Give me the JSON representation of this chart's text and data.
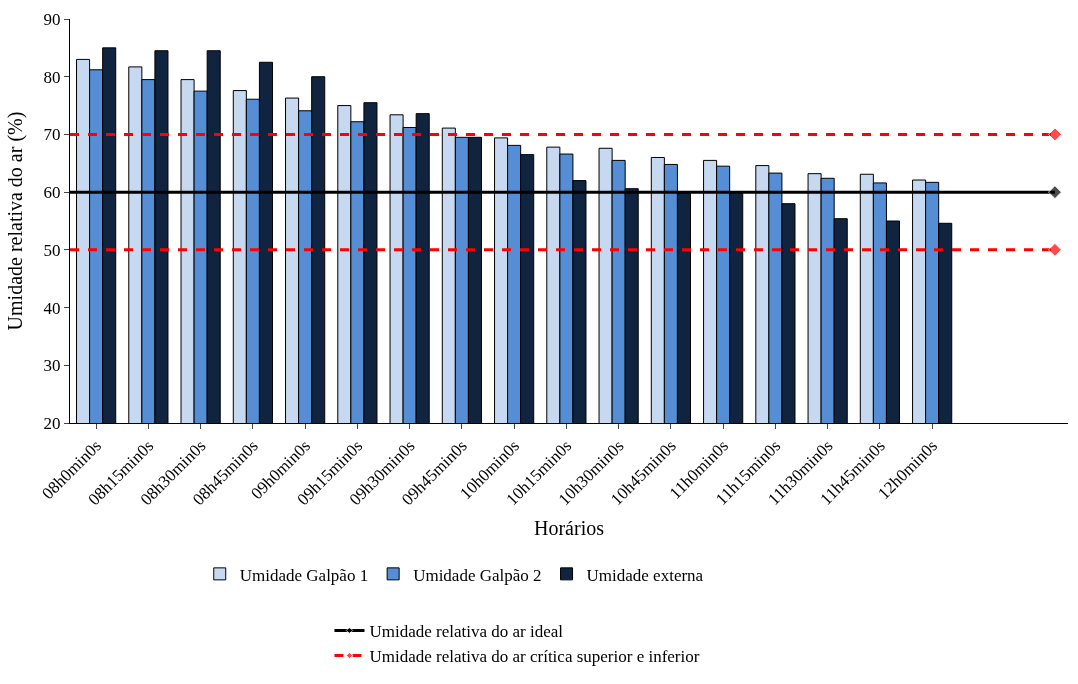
{
  "chart_data": {
    "type": "bar",
    "xlabel": "Horários",
    "ylabel": "Umidade relativa do ar (%)",
    "categories": [
      "08h0min0s",
      "08h15min0s",
      "08h30min0s",
      "08h45min0s",
      "09h0min0s",
      "09h15min0s",
      "09h30min0s",
      "09h45min0s",
      "10h0min0s",
      "10h15min0s",
      "10h30min0s",
      "10h45min0s",
      "11h0min0s",
      "11h15min0s",
      "11h30min0s",
      "11h45min0s",
      "12h0min0s"
    ],
    "series": [
      {
        "name": "Umidade Galpão 1",
        "color": "#c6d9f1",
        "values": [
          83,
          81.7,
          79.5,
          77.6,
          76.3,
          75,
          73.4,
          71.1,
          69.4,
          67.8,
          67.6,
          66,
          65.5,
          64.6,
          63.2,
          63.1,
          62.1
        ]
      },
      {
        "name": "Umidade Galpão 2",
        "color": "#558ed5",
        "values": [
          81.2,
          79.5,
          77.5,
          76.1,
          74.1,
          72.2,
          71.2,
          69.5,
          68.1,
          66.6,
          65.5,
          64.8,
          64.5,
          63.3,
          62.4,
          61.6,
          61.7
        ]
      },
      {
        "name": "Umidade externa",
        "color": "#10243f",
        "values": [
          85,
          84.5,
          84.5,
          82.5,
          80,
          75.5,
          73.6,
          69.5,
          66.5,
          62,
          60.6,
          59.8,
          60,
          58,
          55.4,
          55,
          54.6
        ]
      }
    ],
    "ylim": [
      20,
      90
    ],
    "yticks": [
      20,
      30,
      40,
      50,
      60,
      70,
      80,
      90
    ],
    "legend": "bottom",
    "ref_lines": [
      {
        "axis": "y",
        "value": 60,
        "label": "Umidade relativa do ar ideal",
        "color": "#000000",
        "line_style": "solid"
      },
      {
        "axis": "y",
        "value": 70,
        "label": "Umidade relativa do ar crítica superior e inferior",
        "color": "#ff0000",
        "line_style": "dashed"
      },
      {
        "axis": "y",
        "value": 50,
        "label": null,
        "color": "#ff0000",
        "line_style": "dashed"
      }
    ]
  }
}
